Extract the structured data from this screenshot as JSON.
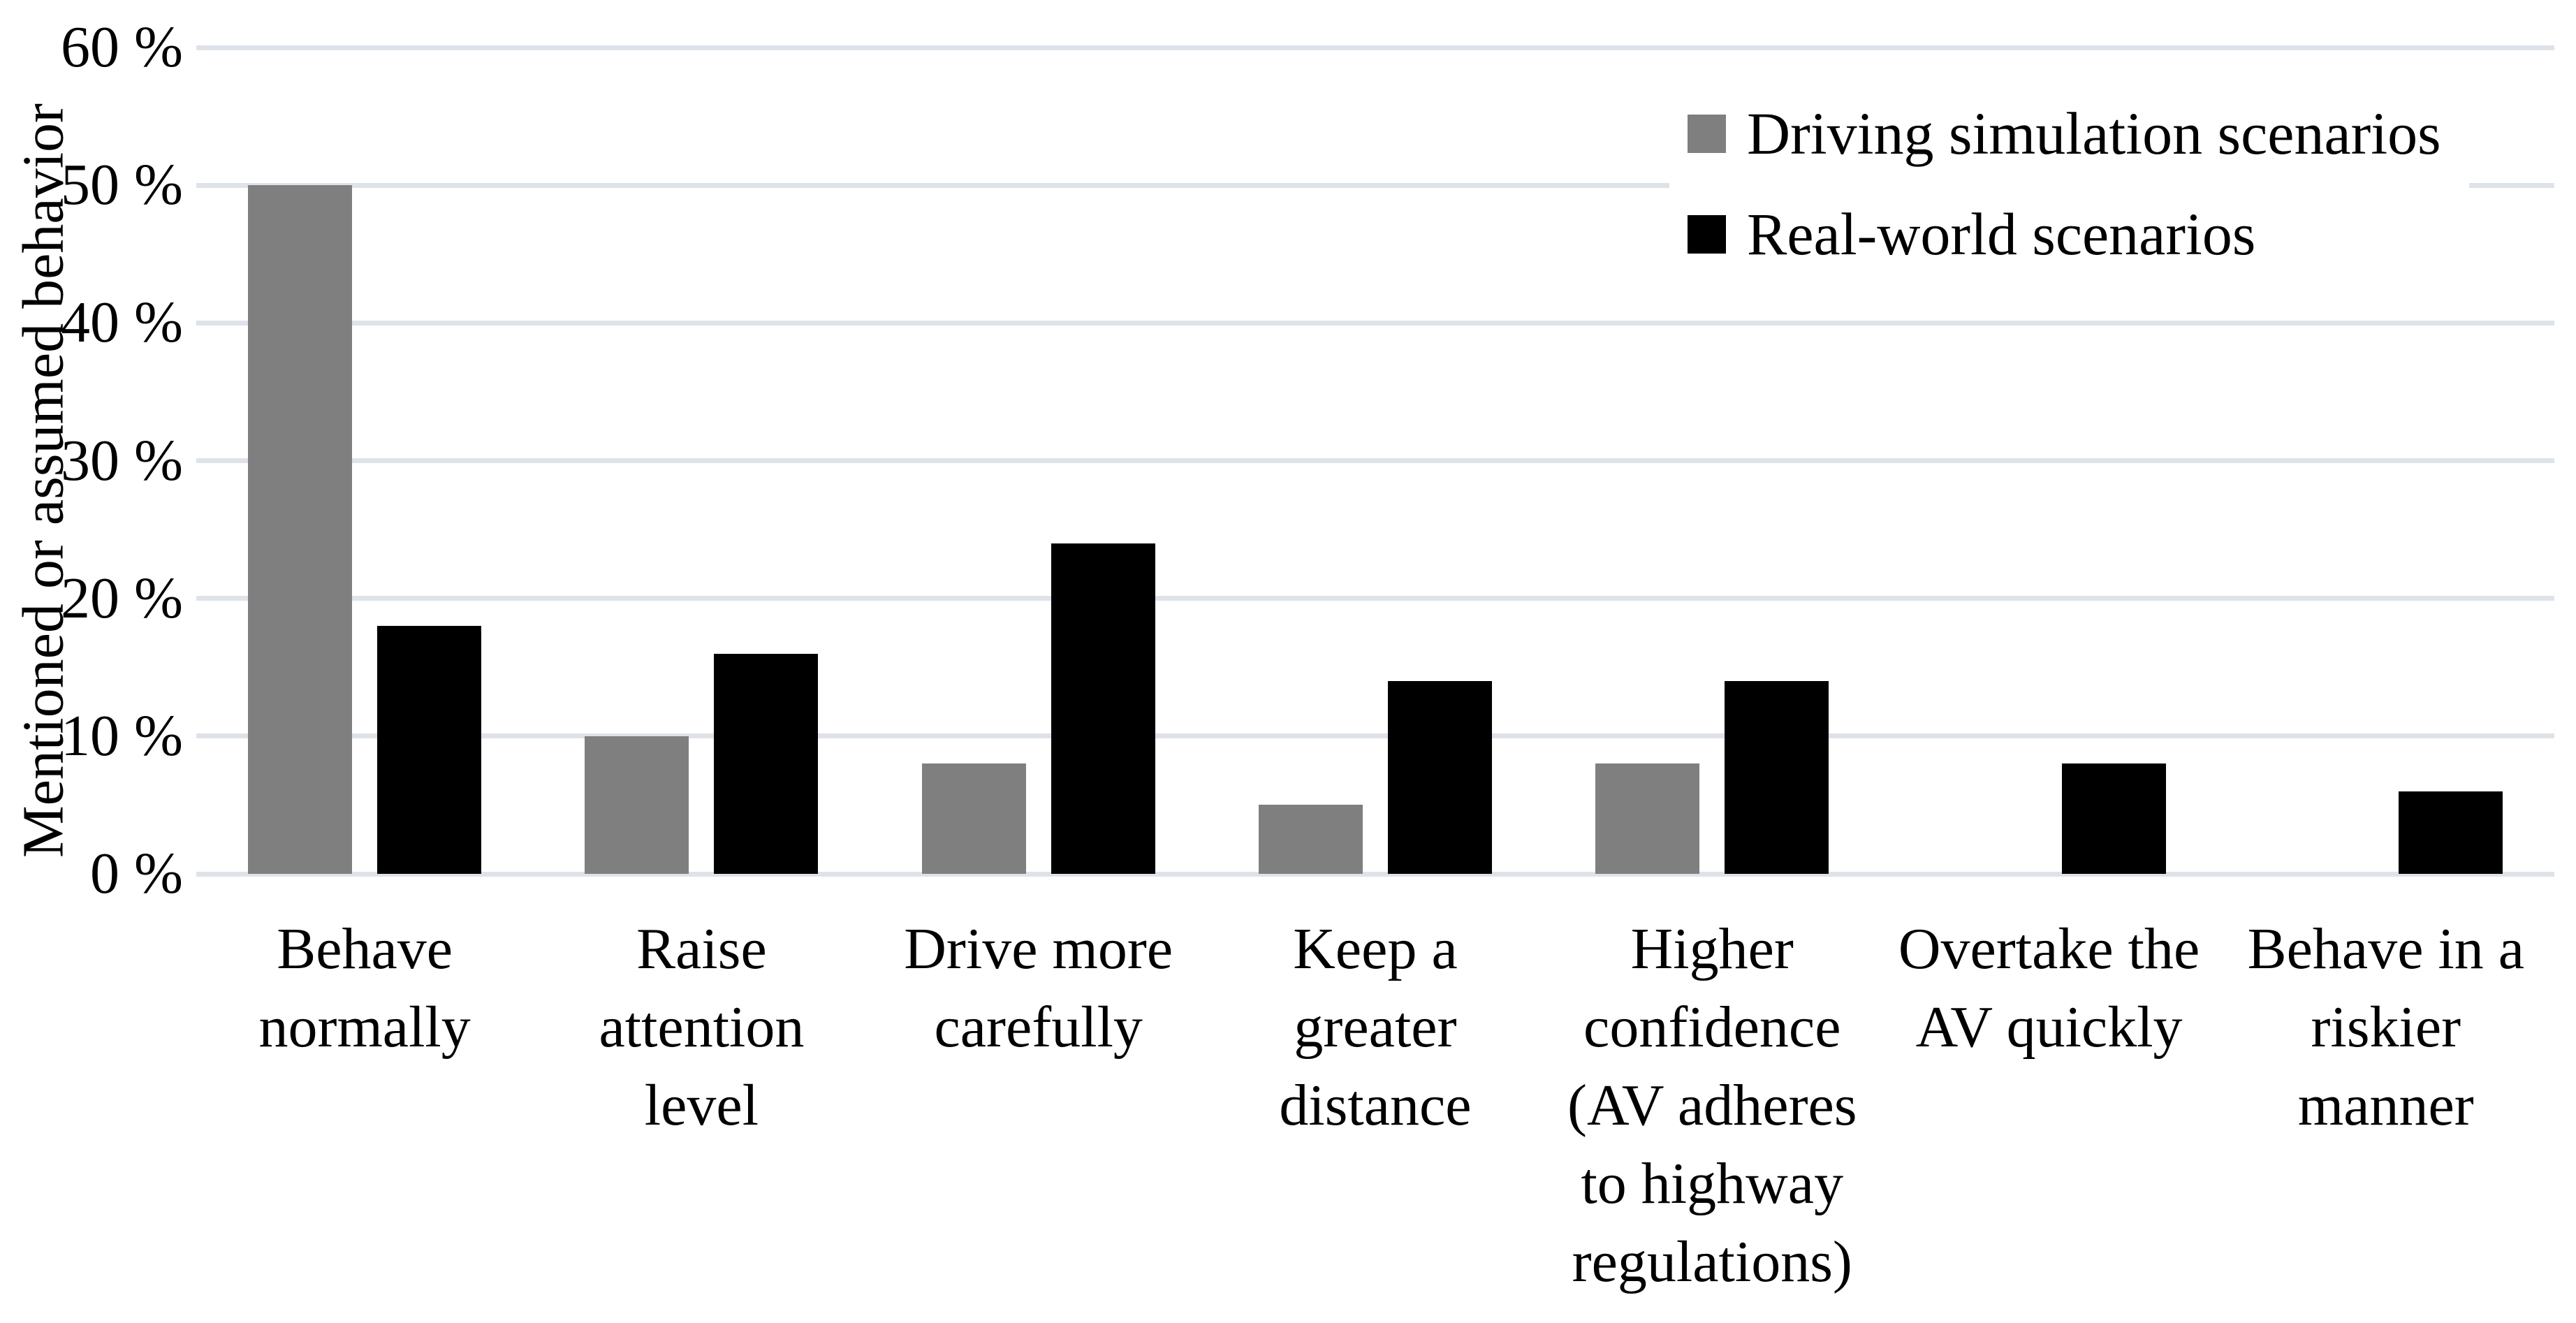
{
  "chart_data": {
    "type": "bar",
    "title": "",
    "ylabel": "Mentioned or assumed behavior",
    "xlabel": "",
    "ylim": [
      0,
      60
    ],
    "y_tick_step": 10,
    "y_tick_labels": [
      "0 %",
      "10 %",
      "20 %",
      "30 %",
      "40 %",
      "50 %",
      "60 %"
    ],
    "grid": true,
    "legend_position": "top-right",
    "categories": [
      "Behave\nnormally",
      "Raise\nattention\nlevel",
      "Drive more\ncarefully",
      "Keep a\ngreater\ndistance",
      "Higher\nconfidence\n(AV adheres\nto highway\nregulations)",
      "Overtake the\nAV quickly",
      "Behave in a\nriskier\nmanner"
    ],
    "series": [
      {
        "name": "Driving simulation scenarios",
        "color": "#7f7f7f",
        "values": [
          50,
          10,
          8,
          5,
          8,
          0,
          0
        ]
      },
      {
        "name": "Real-world scenarios",
        "color": "#000000",
        "values": [
          18,
          16,
          24,
          14,
          14,
          8,
          6
        ]
      }
    ],
    "gridline_color": "#dee2e9",
    "background": "#ffffff"
  }
}
